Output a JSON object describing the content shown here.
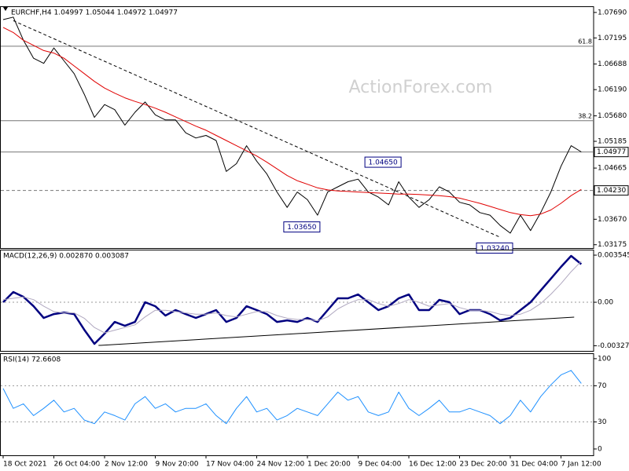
{
  "chart_data": [
    {
      "type": "line",
      "title": "EURCHF,H4  1.04997 1.05044 1.04972 1.04977",
      "watermark": "ActionForex.com",
      "categories": [
        "18 Oct 2021",
        null,
        null,
        null,
        null,
        "26 Oct 04:00",
        null,
        null,
        null,
        null,
        "2 Nov 12:00",
        null,
        null,
        null,
        null,
        "9 Nov 20:00",
        null,
        null,
        null,
        null,
        "17 Nov 04:00",
        null,
        null,
        null,
        null,
        "24 Nov 12:00",
        null,
        null,
        null,
        null,
        "1 Dec 20:00",
        null,
        null,
        null,
        null,
        "9 Dec 04:00",
        null,
        null,
        null,
        null,
        "16 Dec 12:00",
        null,
        null,
        null,
        null,
        "23 Dec 20:00",
        null,
        null,
        null,
        null,
        "31 Dec 04:00",
        null,
        null,
        null,
        null,
        "7 Jan 12:00",
        null,
        null
      ],
      "series": [
        {
          "color": "#000000",
          "width": 1,
          "values": [
            1.0755,
            1.076,
            1.0715,
            1.068,
            1.067,
            1.07,
            1.0675,
            1.065,
            1.061,
            1.0565,
            1.059,
            1.058,
            1.055,
            1.0575,
            1.0595,
            1.057,
            1.056,
            1.056,
            1.0535,
            1.0525,
            1.053,
            1.052,
            1.046,
            1.0475,
            1.051,
            1.048,
            1.0455,
            1.042,
            1.039,
            1.042,
            1.0405,
            1.0375,
            1.042,
            1.043,
            1.044,
            1.0445,
            1.042,
            1.041,
            1.0395,
            1.044,
            1.041,
            1.039,
            1.0405,
            1.043,
            1.042,
            1.04,
            1.0395,
            1.038,
            1.0375,
            1.0355,
            1.034,
            1.0375,
            1.0345,
            1.038,
            1.042,
            1.047,
            1.051,
            1.0498
          ]
        },
        {
          "color": "#e00000",
          "width": 1,
          "values": [
            1.074,
            1.073,
            1.0715,
            1.0705,
            1.0695,
            1.069,
            1.068,
            1.0665,
            1.065,
            1.0635,
            1.0622,
            1.0612,
            1.0603,
            1.0596,
            1.059,
            1.0583,
            1.0575,
            1.0566,
            1.0557,
            1.0548,
            1.054,
            1.053,
            1.052,
            1.051,
            1.05,
            1.049,
            1.0478,
            1.0465,
            1.0452,
            1.0442,
            1.0435,
            1.0428,
            1.0424,
            1.0422,
            1.0421,
            1.042,
            1.0419,
            1.0418,
            1.0417,
            1.0416,
            1.0416,
            1.0415,
            1.0414,
            1.0413,
            1.0411,
            1.0408,
            1.0403,
            1.0398,
            1.0392,
            1.0386,
            1.038,
            1.0376,
            1.0374,
            1.0377,
            1.0385,
            1.0398,
            1.0413,
            1.0425
          ]
        }
      ],
      "ylim": [
        1.0311,
        1.0781
      ],
      "yticks": [
        {
          "value": 1.0769,
          "label": "1.07690"
        },
        {
          "value": 1.07195,
          "label": "1.07195"
        },
        {
          "value": 1.06688,
          "label": "1.06688"
        },
        {
          "value": 1.0619,
          "label": "1.06190"
        },
        {
          "value": 1.0568,
          "label": "1.05680"
        },
        {
          "value": 1.05185,
          "label": "1.05185"
        },
        {
          "value": 1.04665,
          "label": "1.04665"
        },
        {
          "value": 1.0418,
          "label": "1.04180"
        },
        {
          "value": 1.0367,
          "label": "1.03670"
        },
        {
          "value": 1.03175,
          "label": "1.03175"
        }
      ],
      "levels": [
        {
          "value": 1.07034,
          "label": "61.8",
          "style": "solid"
        },
        {
          "value": 1.05585,
          "label": "38.2",
          "style": "solid"
        },
        {
          "value": 1.04977,
          "label": "1.04977",
          "style": "solid",
          "box": true
        },
        {
          "value": 1.0423,
          "label": "1.04230",
          "style": "dashed",
          "box": true
        }
      ],
      "lines": [
        {
          "x": [
            1,
            49
          ],
          "y": [
            1.0753,
            1.0332
          ],
          "style": "dashed"
        }
      ],
      "annotations": [
        {
          "text": "1.04650",
          "x": 39,
          "y": 1.0465
        },
        {
          "text": "1.03650",
          "x": 31,
          "y": 1.0365
        },
        {
          "text": "1.03240",
          "x": 50,
          "y": 1.0324
        }
      ]
    },
    {
      "type": "line",
      "title": "MACD(12,26,9) 0.002870 0.003087",
      "series": [
        {
          "color": "#000080",
          "width": 2.5,
          "values": [
            0,
            0.00077,
            0.00041,
            -0.0003,
            -0.00118,
            -0.00089,
            -0.00077,
            -0.00089,
            -0.00207,
            -0.00313,
            -0.00236,
            -0.00148,
            -0.00177,
            -0.00148,
            0,
            -0.0003,
            -0.001,
            -0.00059,
            -0.00089,
            -0.00118,
            -0.00089,
            -0.00059,
            -0.00148,
            -0.00118,
            -0.0003,
            -0.00059,
            -0.00089,
            -0.00148,
            -0.00136,
            -0.00148,
            -0.00118,
            -0.00148,
            -0.00059,
            0.0003,
            0.0003,
            0.00059,
            0,
            -0.00059,
            -0.0003,
            0.0003,
            0.00059,
            -0.00059,
            -0.00059,
            0.00018,
            0,
            -0.00089,
            -0.00059,
            -0.00059,
            -0.00089,
            -0.00136,
            -0.00118,
            -0.00059,
            0,
            0.00089,
            0.00177,
            0.00266,
            0.00349,
            0.00287
          ]
        },
        {
          "color": "#b0a8c0",
          "width": 1,
          "values": [
            0.0002,
            0.0003,
            0.0004,
            0.0002,
            -0.0003,
            -0.0007,
            -0.0008,
            -0.0008,
            -0.0012,
            -0.0019,
            -0.0023,
            -0.0021,
            -0.0019,
            -0.0017,
            -0.0011,
            -0.0006,
            -0.0006,
            -0.0007,
            -0.0008,
            -0.0009,
            -0.0009,
            -0.0008,
            -0.001,
            -0.0011,
            -0.0009,
            -0.0007,
            -0.0007,
            -0.001,
            -0.0012,
            -0.0013,
            -0.0013,
            -0.0014,
            -0.0011,
            -0.0005,
            -0.0001,
            0.0002,
            0.0002,
            -0.0001,
            -0.0003,
            -0.0001,
            0.0002,
            0,
            -0.0003,
            -0.0002,
            -0.0001,
            -0.0004,
            -0.0006,
            -0.0006,
            -0.0007,
            -0.0009,
            -0.001,
            -0.0009,
            -0.0006,
            -0.0001,
            0.0006,
            0.0014,
            0.0023,
            0.003087
          ]
        }
      ],
      "ylim": [
        -0.00366,
        0.00396
      ],
      "yticks": [
        0.003545,
        {
          "value": 0,
          "label": "0.00"
        },
        -0.003272
      ],
      "levels": [
        {
          "value": 0,
          "style": "dotted"
        }
      ],
      "lines": [
        {
          "x": [
            9.4,
            56.3
          ],
          "y": [
            -0.00325,
            -0.00112
          ],
          "style": "solid"
        }
      ]
    },
    {
      "type": "line",
      "title": "RSI(14) 72.6608",
      "series": [
        {
          "color": "#1e90ff",
          "width": 1,
          "values": [
            67,
            45,
            50,
            37,
            45,
            54,
            41,
            45,
            32,
            28,
            41,
            37,
            32,
            50,
            58,
            45,
            50,
            41,
            45,
            45,
            50,
            37,
            28,
            45,
            58,
            41,
            45,
            32,
            37,
            45,
            41,
            37,
            50,
            63,
            54,
            58,
            41,
            37,
            41,
            63,
            45,
            37,
            45,
            54,
            41,
            41,
            45,
            41,
            37,
            28,
            37,
            54,
            41,
            58,
            71,
            82,
            87,
            72.6608
          ]
        }
      ],
      "ylim": [
        -7,
        106
      ],
      "yticks": [
        100,
        70,
        30,
        0
      ],
      "levels": [
        {
          "value": 70,
          "style": "dotted"
        },
        {
          "value": 30,
          "style": "dotted"
        }
      ]
    }
  ]
}
